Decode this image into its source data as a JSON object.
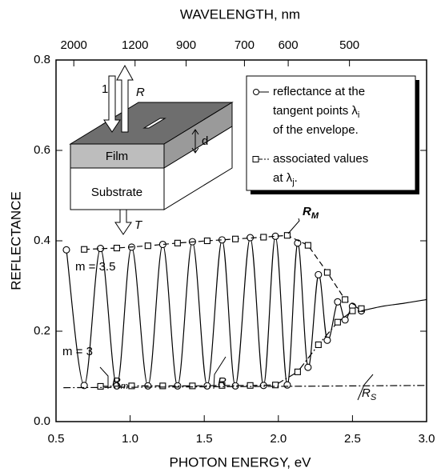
{
  "chart_data": {
    "type": "line",
    "x_label": "PHOTON ENERGY, eV",
    "y_label": "REFLECTANCE",
    "x2_label": "WAVELENGTH, nm",
    "xlim": [
      0.5,
      3.0
    ],
    "ylim": [
      0,
      0.8
    ],
    "xticks": [
      0.5,
      {
        "value": 1,
        "label": "1.0"
      },
      1.5,
      {
        "value": 2,
        "label": "2.0"
      },
      2.5,
      {
        "value": 3,
        "label": "3.0"
      }
    ],
    "yticks": [
      {
        "value": 0,
        "label": "0.0"
      },
      0.2,
      0.4,
      0.6,
      0.8
    ],
    "x2ticks": [
      2000,
      1200,
      900,
      700,
      600,
      500
    ],
    "series": [
      {
        "style": "solid",
        "marker": "circle",
        "color": "#000000",
        "x": [
          0.57,
          0.69,
          0.8,
          0.91,
          1.01,
          1.12,
          1.22,
          1.32,
          1.42,
          1.52,
          1.62,
          1.71,
          1.81,
          1.9,
          1.98,
          2.06,
          2.13,
          2.2,
          2.27,
          2.33,
          2.4,
          2.45,
          2.5,
          2.56
        ],
        "values": [
          0.38,
          0.08,
          0.383,
          0.079,
          0.386,
          0.079,
          0.392,
          0.079,
          0.398,
          0.079,
          0.402,
          0.079,
          0.407,
          0.08,
          0.41,
          0.081,
          0.395,
          0.12,
          0.325,
          0.18,
          0.265,
          0.225,
          0.255,
          0.245
        ]
      },
      {
        "style": "dashed",
        "marker": "square",
        "color": "#000000",
        "x": [
          0.69,
          0.91,
          1.12,
          1.32,
          1.52,
          1.71,
          1.9,
          2.06,
          2.2,
          2.33,
          2.45,
          2.56
        ],
        "values": [
          0.381,
          0.384,
          0.389,
          0.395,
          0.4,
          0.404,
          0.408,
          0.412,
          0.39,
          0.33,
          0.27,
          0.25
        ]
      },
      {
        "style": "dashdot",
        "marker": "square",
        "color": "#000000",
        "x": [
          0.8,
          1.01,
          1.22,
          1.42,
          1.62,
          1.81,
          1.98,
          2.13,
          2.27,
          2.4,
          2.5
        ],
        "values": [
          0.078,
          0.079,
          0.079,
          0.079,
          0.08,
          0.08,
          0.081,
          0.11,
          0.17,
          0.22,
          0.245
        ]
      },
      {
        "style": "dashdot",
        "marker": "none",
        "color": "#000000",
        "x": [
          0.55,
          3.0
        ],
        "values": [
          0.075,
          0.08
        ]
      },
      {
        "style": "solid",
        "marker": "none",
        "color": "#000000",
        "x": [
          2.56,
          2.7,
          2.85,
          3.0
        ],
        "values": [
          0.245,
          0.255,
          0.262,
          0.27
        ]
      }
    ],
    "legend": [
      {
        "marker": "circle",
        "lines": [
          "reflectance at the",
          "tangent points λ",
          "of the envelope."
        ],
        "sub": "i"
      },
      {
        "marker": "square",
        "lines": [
          "associated values",
          "at λ"
        ],
        "sub": "j",
        "suffix": "."
      }
    ],
    "annotations": [
      {
        "text": "R",
        "sub": "M"
      },
      {
        "text": "R",
        "sub": "m"
      },
      {
        "text": "R"
      },
      {
        "text": "R",
        "sub": "S"
      },
      {
        "text": "m = 3.5"
      },
      {
        "text": "m = 3"
      }
    ]
  },
  "inset": {
    "incident": "1",
    "reflected": "R",
    "transmitted": "T",
    "film": "Film",
    "substrate": "Substrate",
    "thickness": "d"
  }
}
